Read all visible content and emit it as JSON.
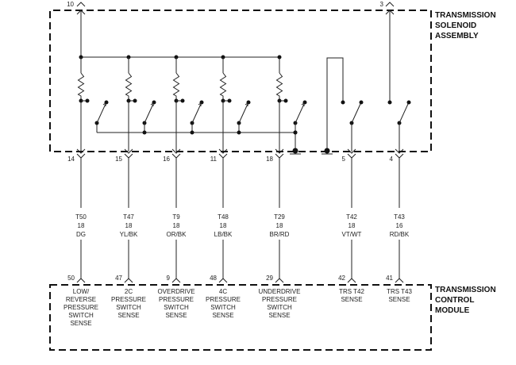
{
  "solenoid_assembly": {
    "title_lines": [
      "TRANSMISSION",
      "SOLENOID",
      "ASSEMBLY"
    ],
    "top_pins": [
      "10",
      "3"
    ],
    "bottom_pins": [
      "14",
      "15",
      "16",
      "11",
      "18",
      "5",
      "4"
    ]
  },
  "wires": [
    {
      "circuit": "T50",
      "gauge": "18",
      "color": "DG"
    },
    {
      "circuit": "T47",
      "gauge": "18",
      "color": "YL/BK"
    },
    {
      "circuit": "T9",
      "gauge": "18",
      "color": "OR/BK"
    },
    {
      "circuit": "T48",
      "gauge": "18",
      "color": "LB/BK"
    },
    {
      "circuit": "T29",
      "gauge": "18",
      "color": "BR/RD"
    },
    {
      "circuit": "T42",
      "gauge": "18",
      "color": "VT/WT"
    },
    {
      "circuit": "T43",
      "gauge": "16",
      "color": "RD/BK"
    }
  ],
  "control_module": {
    "title_lines": [
      "TRANSMISSION",
      "CONTROL",
      "MODULE"
    ],
    "pins": [
      "50",
      "47",
      "9",
      "48",
      "29",
      "42",
      "41"
    ],
    "functions": [
      [
        "LOW/",
        "REVERSE",
        "PRESSURE",
        "SWITCH",
        "SENSE"
      ],
      [
        "2C",
        "PRESSURE",
        "SWITCH",
        "SENSE"
      ],
      [
        "OVERDRIVE",
        "PRESSURE",
        "SWITCH",
        "SENSE"
      ],
      [
        "4C",
        "PRESSURE",
        "SWITCH",
        "SENSE"
      ],
      [
        "UNDERDRIVE",
        "PRESSURE",
        "SWITCH",
        "SENSE"
      ],
      [
        "TRS T42",
        "SENSE"
      ],
      [
        "TRS T43",
        "SENSE"
      ]
    ]
  }
}
